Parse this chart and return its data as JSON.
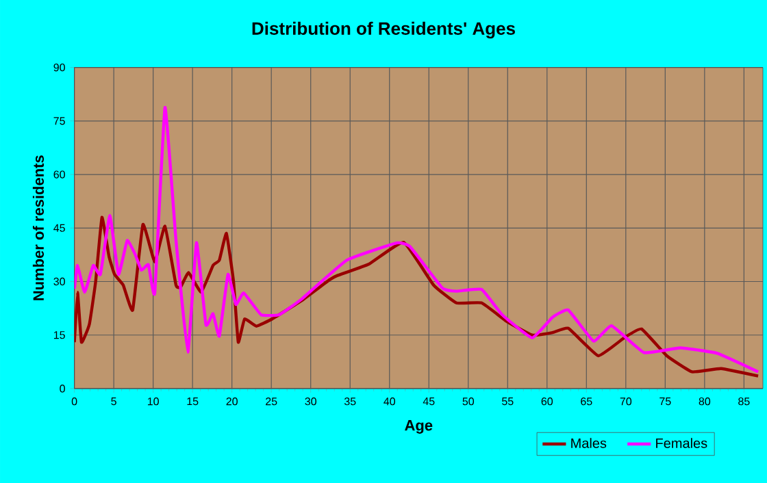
{
  "chart_data": {
    "type": "line",
    "title": "Distribution of Residents' Ages",
    "xlabel": "Age",
    "ylabel": "Number of residents",
    "xlim": [
      0,
      87.4
    ],
    "ylim": [
      0,
      90
    ],
    "xticks": [
      0,
      5,
      10,
      15,
      20,
      25,
      30,
      35,
      40,
      45,
      50,
      55,
      60,
      65,
      70,
      75,
      80,
      85
    ],
    "yticks": [
      0,
      15,
      30,
      45,
      60,
      75,
      90
    ],
    "grid": true,
    "legend": "bottom right",
    "marker": "none",
    "line_style": "solid",
    "series": [
      {
        "name": "Males",
        "color": "#990000",
        "x": [
          0,
          0.4,
          0.9,
          1.9,
          2.7,
          3.5,
          4.4,
          5.1,
          6.2,
          7.4,
          8.7,
          10.2,
          11.5,
          12.9,
          13.5,
          14.5,
          16.1,
          17.6,
          18.4,
          19.3,
          20.2,
          20.8,
          21.6,
          23.1,
          25.1,
          28.8,
          32.4,
          33.4,
          37.4,
          41.8,
          45.6,
          48.5,
          51.7,
          54.9,
          58.1,
          60.7,
          62.7,
          66.5,
          69.9,
          72,
          75.2,
          78.4,
          82.1,
          86.8
        ],
        "values": [
          13,
          27,
          13,
          18,
          30,
          48,
          37,
          32,
          29,
          22,
          46,
          35.5,
          45.5,
          29,
          28.5,
          32.5,
          27,
          34.5,
          36,
          43.5,
          30,
          13,
          19.5,
          17.5,
          19.5,
          24.6,
          30.5,
          31.7,
          34.9,
          41,
          29,
          24,
          24,
          18.8,
          15,
          15.7,
          16.9,
          9.2,
          14.4,
          16.7,
          9.2,
          4.7,
          5.6,
          3.5
        ]
      },
      {
        "name": "Females",
        "color": "#ff00ff",
        "x": [
          0,
          0.4,
          1.3,
          2.4,
          3.3,
          4.5,
          5.6,
          6.7,
          7.7,
          8.5,
          9.4,
          10.2,
          11.5,
          12.9,
          14.4,
          15.5,
          16.7,
          17.6,
          18.4,
          19.5,
          20.5,
          21.5,
          23.7,
          26,
          28.8,
          34.6,
          40.9,
          42.6,
          46.7,
          48.5,
          51.7,
          54.3,
          58.1,
          60.7,
          62.7,
          65.9,
          68.2,
          72.3,
          76.9,
          81.6,
          86.8
        ],
        "values": [
          28,
          34.5,
          27,
          34.5,
          32,
          48.5,
          32,
          41.5,
          37.7,
          33.2,
          34.7,
          26.8,
          78.8,
          41.5,
          10.2,
          40.9,
          17.9,
          21,
          14.7,
          32,
          23.6,
          26.8,
          20.7,
          20.7,
          25,
          36,
          40.8,
          39.8,
          28.2,
          27.3,
          27.8,
          20.7,
          14.2,
          20,
          22,
          13.3,
          17.6,
          10.1,
          11.4,
          9.9,
          4.7
        ]
      }
    ]
  }
}
